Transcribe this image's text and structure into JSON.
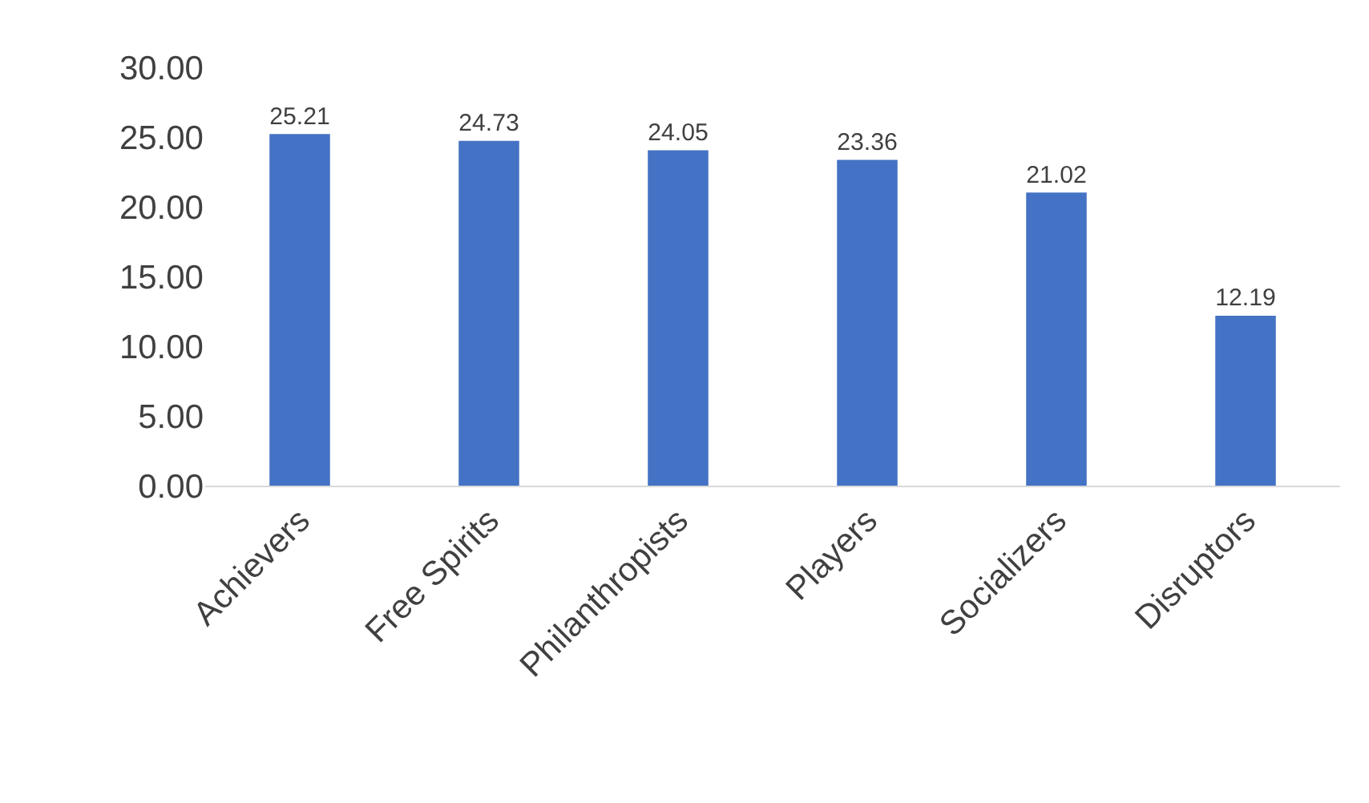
{
  "chart_data": {
    "type": "bar",
    "categories": [
      "Achievers",
      "Free Spirits",
      "Philanthropists",
      "Players",
      "Socializers",
      "Disruptors"
    ],
    "values": [
      25.21,
      24.73,
      24.05,
      23.36,
      21.02,
      12.19
    ],
    "color": "#4472c4",
    "ylim": [
      0,
      30
    ],
    "yticks": [
      {
        "value": 0,
        "label": "0.00"
      },
      {
        "value": 5,
        "label": "5.00"
      },
      {
        "value": 10,
        "label": "10.00"
      },
      {
        "value": 15,
        "label": "15.00"
      },
      {
        "value": 20,
        "label": "20.00"
      },
      {
        "value": 25,
        "label": "25.00"
      },
      {
        "value": 30,
        "label": "30.00"
      }
    ],
    "data_labels": true,
    "grid": false,
    "legend": false
  }
}
